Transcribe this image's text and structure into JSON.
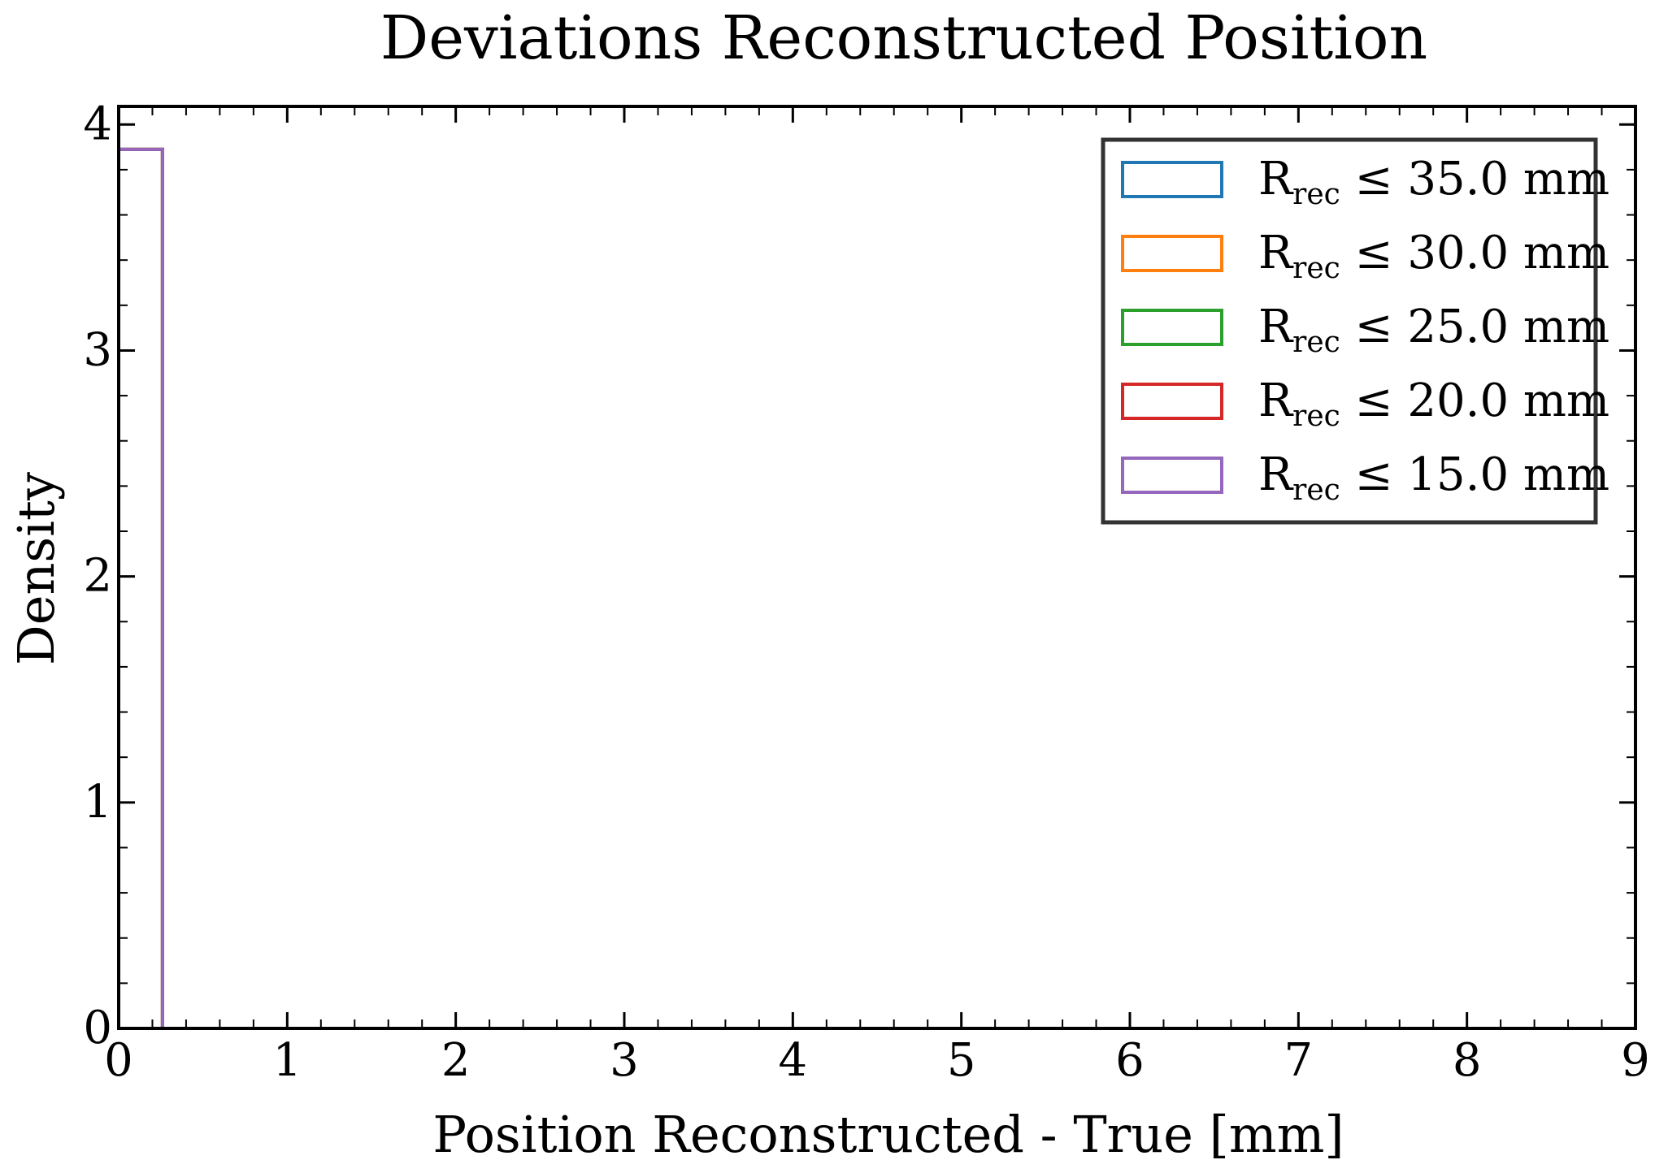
{
  "chart_data": {
    "type": "histogram",
    "title": "Deviations Reconstructed Position",
    "xlabel": "Position Reconstructed - True [mm]",
    "ylabel": "Density",
    "xlim": [
      0,
      9
    ],
    "ylim": [
      0,
      4.08
    ],
    "x_ticks": [
      0,
      1,
      2,
      3,
      4,
      5,
      6,
      7,
      8,
      9
    ],
    "y_ticks": [
      0,
      1,
      2,
      3,
      4
    ],
    "x_minor_step": 0.2,
    "y_minor_step": 0.2,
    "grid": false,
    "legend_placement": "top-right",
    "histtype": "step",
    "series": [
      {
        "name": "R_rec ≤ 35.0 mm",
        "label_main": "R",
        "label_sub": "rec",
        "label_rest": " ≤ 35.0 mm",
        "color": "#1f77b4",
        "bin_edges": [
          0,
          0.26
        ],
        "density": [
          3.89
        ]
      },
      {
        "name": "R_rec ≤ 30.0 mm",
        "label_main": "R",
        "label_sub": "rec",
        "label_rest": " ≤ 30.0 mm",
        "color": "#ff7f0e",
        "bin_edges": [
          0,
          0.26
        ],
        "density": [
          3.89
        ]
      },
      {
        "name": "R_rec ≤ 25.0 mm",
        "label_main": "R",
        "label_sub": "rec",
        "label_rest": " ≤ 25.0 mm",
        "color": "#2ca02c",
        "bin_edges": [
          0,
          0.26
        ],
        "density": [
          3.89
        ]
      },
      {
        "name": "R_rec ≤ 20.0 mm",
        "label_main": "R",
        "label_sub": "rec",
        "label_rest": " ≤ 20.0 mm",
        "color": "#d62728",
        "bin_edges": [
          0,
          0.26
        ],
        "density": [
          3.89
        ]
      },
      {
        "name": "R_rec ≤ 15.0 mm",
        "label_main": "R",
        "label_sub": "rec",
        "label_rest": " ≤ 15.0 mm",
        "color": "#9467bd",
        "bin_edges": [
          0,
          0.26
        ],
        "density": [
          3.89
        ]
      }
    ]
  }
}
